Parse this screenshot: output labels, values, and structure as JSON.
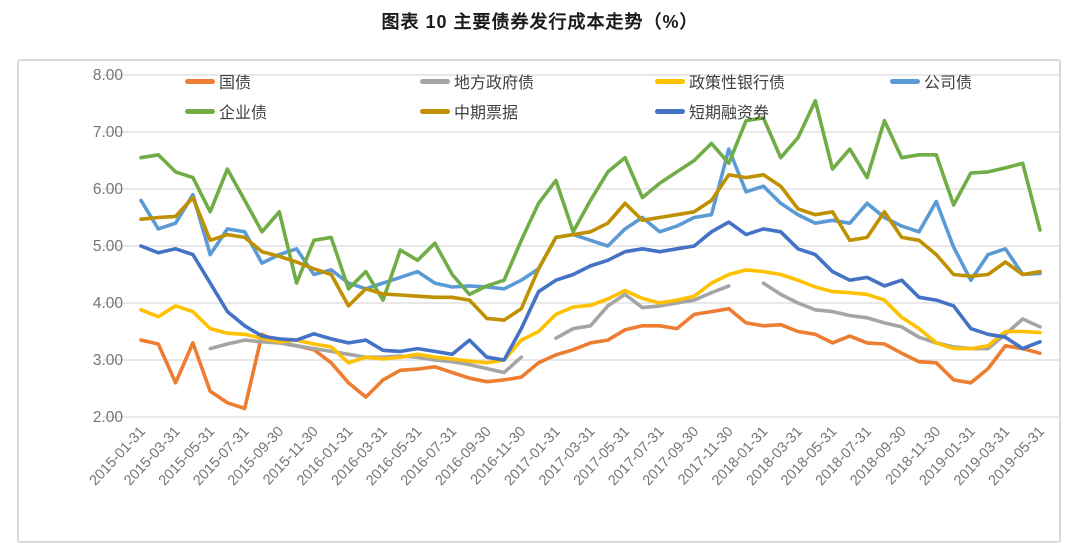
{
  "page": {
    "title": "图表 10 主要债券发行成本走势（%）"
  },
  "colors": {
    "gridline": "#D9D9D9",
    "frame_border": "#D9D9D9",
    "axis_text": "#757575",
    "legend_text": "#3f3f3f",
    "treasury_orange": "#ED7D31",
    "local_gov_gray": "#A5A5A5",
    "policy_bank_yellow": "#FFC000",
    "corporate_lightblue": "#5B9BD5",
    "enterprise_green": "#70AD47",
    "mtn_gold": "#BF9000",
    "scp_blue": "#4472C4"
  },
  "chart_data": {
    "type": "line",
    "title": "图表 10 主要债券发行成本走势（%）",
    "ylabel": "",
    "xlabel": "",
    "ylim": [
      2,
      8
    ],
    "yticks": [
      8,
      7,
      6,
      5,
      4,
      3,
      2
    ],
    "ytick_labels": [
      "8.00",
      "7.00",
      "6.00",
      "5.00",
      "4.00",
      "3.00",
      "2.00"
    ],
    "grid": "horizontal",
    "legend_position": "top",
    "x": [
      "2015-01",
      "2015-02",
      "2015-03",
      "2015-04",
      "2015-05",
      "2015-06",
      "2015-07",
      "2015-08",
      "2015-09",
      "2015-10",
      "2015-11",
      "2015-12",
      "2016-01",
      "2016-02",
      "2016-03",
      "2016-04",
      "2016-05",
      "2016-06",
      "2016-07",
      "2016-08",
      "2016-09",
      "2016-10",
      "2016-11",
      "2016-12",
      "2017-01",
      "2017-02",
      "2017-03",
      "2017-04",
      "2017-05",
      "2017-06",
      "2017-07",
      "2017-08",
      "2017-09",
      "2017-10",
      "2017-11",
      "2017-12",
      "2018-01",
      "2018-02",
      "2018-03",
      "2018-04",
      "2018-05",
      "2018-06",
      "2018-07",
      "2018-08",
      "2018-09",
      "2018-10",
      "2018-11",
      "2018-12",
      "2019-01",
      "2019-02",
      "2019-03",
      "2019-04",
      "2019-05"
    ],
    "x_tick_labels": [
      "2015-01-31",
      "2015-03-31",
      "2015-05-31",
      "2015-07-31",
      "2015-09-30",
      "2015-11-30",
      "2016-01-31",
      "2016-03-31",
      "2016-05-31",
      "2016-07-31",
      "2016-09-30",
      "2016-11-30",
      "2017-01-31",
      "2017-03-31",
      "2017-05-31",
      "2017-07-31",
      "2017-09-30",
      "2017-11-30",
      "2018-01-31",
      "2018-03-31",
      "2018-05-31",
      "2018-07-31",
      "2018-09-30",
      "2018-11-30",
      "2019-01-31",
      "2019-03-31",
      "2019-05-31"
    ],
    "series": [
      {
        "name": "国债",
        "color": "#ED7D31",
        "values": [
          3.35,
          3.28,
          2.6,
          3.3,
          2.45,
          2.25,
          2.15,
          3.45,
          3.3,
          3.25,
          3.18,
          2.95,
          2.6,
          2.35,
          2.65,
          2.82,
          2.84,
          2.88,
          2.78,
          2.68,
          2.62,
          2.65,
          2.7,
          2.95,
          3.09,
          3.18,
          3.3,
          3.35,
          3.53,
          3.6,
          3.6,
          3.55,
          3.8,
          3.85,
          3.9,
          3.65,
          3.6,
          3.62,
          3.5,
          3.45,
          3.3,
          3.42,
          3.3,
          3.28,
          3.12,
          2.97,
          2.95,
          2.65,
          2.6,
          2.85,
          3.25,
          3.2,
          3.12
        ]
      },
      {
        "name": "地方政府债",
        "color": "#A5A5A5",
        "values": [
          null,
          null,
          null,
          null,
          3.2,
          3.28,
          3.35,
          3.32,
          3.3,
          3.25,
          3.2,
          3.15,
          3.1,
          3.05,
          3.05,
          3.07,
          3.05,
          3.0,
          2.97,
          2.92,
          2.85,
          2.78,
          3.05,
          null,
          3.38,
          3.55,
          3.6,
          3.95,
          4.15,
          3.92,
          3.95,
          4.0,
          4.05,
          4.18,
          4.3,
          null,
          4.35,
          4.15,
          4.0,
          3.88,
          3.85,
          3.78,
          3.74,
          3.65,
          3.58,
          3.4,
          3.3,
          3.23,
          3.2,
          3.2,
          3.45,
          3.72,
          3.58
        ]
      },
      {
        "name": "政策性银行债",
        "color": "#FFC000",
        "values": [
          3.88,
          3.76,
          3.95,
          3.85,
          3.55,
          3.47,
          3.45,
          3.38,
          3.32,
          3.35,
          3.28,
          3.23,
          2.95,
          3.05,
          3.02,
          3.05,
          3.1,
          3.05,
          3.02,
          2.98,
          2.95,
          3.0,
          3.35,
          3.5,
          3.8,
          3.93,
          3.96,
          4.07,
          4.22,
          4.08,
          4.0,
          4.05,
          4.12,
          4.35,
          4.5,
          4.58,
          4.55,
          4.5,
          4.4,
          4.28,
          4.2,
          4.18,
          4.15,
          4.05,
          3.75,
          3.55,
          3.3,
          3.2,
          3.2,
          3.25,
          3.5,
          3.5,
          3.48
        ]
      },
      {
        "name": "公司债",
        "color": "#5B9BD5",
        "values": [
          5.8,
          5.3,
          5.4,
          5.9,
          4.85,
          5.3,
          5.25,
          4.7,
          4.85,
          4.95,
          4.5,
          4.58,
          4.35,
          4.25,
          4.35,
          4.45,
          4.55,
          4.35,
          4.28,
          4.3,
          4.28,
          4.25,
          4.4,
          4.6,
          5.15,
          5.2,
          5.1,
          5.0,
          5.3,
          5.5,
          5.25,
          5.35,
          5.5,
          5.55,
          6.7,
          5.95,
          6.05,
          5.75,
          5.55,
          5.4,
          5.45,
          5.4,
          5.75,
          5.5,
          5.35,
          5.25,
          5.78,
          4.98,
          4.4,
          4.85,
          4.95,
          4.5,
          4.52
        ]
      },
      {
        "name": "企业债",
        "color": "#70AD47",
        "values": [
          6.55,
          6.6,
          6.3,
          6.2,
          5.6,
          6.35,
          5.8,
          5.25,
          5.6,
          4.35,
          5.1,
          5.15,
          4.25,
          4.55,
          4.05,
          4.93,
          4.75,
          5.05,
          4.5,
          4.15,
          4.3,
          4.4,
          5.1,
          5.75,
          6.15,
          5.25,
          5.8,
          6.3,
          6.55,
          5.85,
          6.1,
          6.3,
          6.5,
          6.8,
          6.45,
          7.2,
          7.25,
          6.55,
          6.9,
          7.55,
          6.35,
          6.7,
          6.2,
          7.2,
          6.55,
          6.6,
          6.6,
          5.72,
          6.28,
          6.3,
          6.37,
          6.45,
          5.28
        ]
      },
      {
        "name": "中期票据",
        "color": "#BF9000",
        "values": [
          5.47,
          5.5,
          5.52,
          5.85,
          5.1,
          5.2,
          5.15,
          4.9,
          4.82,
          4.72,
          4.6,
          4.5,
          3.95,
          4.25,
          4.16,
          4.14,
          4.12,
          4.1,
          4.1,
          4.05,
          3.73,
          3.7,
          3.9,
          4.6,
          5.15,
          5.2,
          5.25,
          5.4,
          5.75,
          5.45,
          5.5,
          5.55,
          5.6,
          5.8,
          6.25,
          6.2,
          6.25,
          6.05,
          5.65,
          5.55,
          5.6,
          5.1,
          5.15,
          5.6,
          5.15,
          5.1,
          4.85,
          4.5,
          4.47,
          4.5,
          4.72,
          4.5,
          4.55
        ]
      },
      {
        "name": "短期融资券",
        "color": "#4472C4",
        "values": [
          5.0,
          4.88,
          4.95,
          4.85,
          4.35,
          3.85,
          3.6,
          3.42,
          3.37,
          3.35,
          3.46,
          3.37,
          3.3,
          3.35,
          3.17,
          3.15,
          3.2,
          3.15,
          3.1,
          3.35,
          3.05,
          3.0,
          3.55,
          4.2,
          4.4,
          4.5,
          4.65,
          4.75,
          4.9,
          4.95,
          4.9,
          4.95,
          5.0,
          5.25,
          5.42,
          5.2,
          5.3,
          5.25,
          4.95,
          4.85,
          4.55,
          4.4,
          4.45,
          4.3,
          4.4,
          4.1,
          4.05,
          3.95,
          3.55,
          3.45,
          3.4,
          3.2,
          3.32
        ]
      }
    ]
  }
}
